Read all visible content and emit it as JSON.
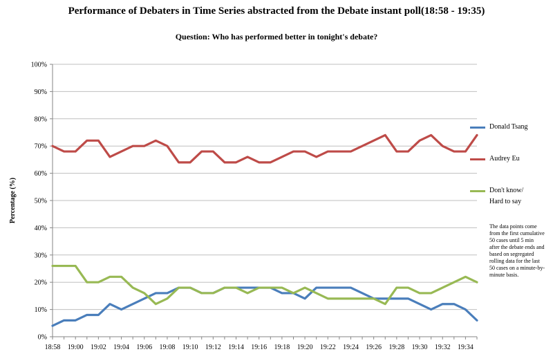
{
  "chart_data": {
    "type": "line",
    "title": "Performance of Debaters in Time Series abstracted from the Debate instant poll(18:58 - 19:35)",
    "subtitle": "Question: Who has performed better in tonight's debate?",
    "ylabel": "Percentage (%)",
    "xlabel": "",
    "ylim": [
      0,
      100
    ],
    "y_ticks": [
      "0%",
      "10%",
      "20%",
      "30%",
      "40%",
      "50%",
      "60%",
      "70%",
      "80%",
      "90%",
      "100%"
    ],
    "grid": "horizontal",
    "legend_position": "right",
    "x": [
      "18:58",
      "18:59",
      "19:00",
      "19:01",
      "19:02",
      "19:03",
      "19:04",
      "19:05",
      "19:06",
      "19:07",
      "19:08",
      "19:09",
      "19:10",
      "19:11",
      "19:12",
      "19:13",
      "19:14",
      "19:15",
      "19:16",
      "19:17",
      "19:18",
      "19:19",
      "19:20",
      "19:21",
      "19:22",
      "19:23",
      "19:24",
      "19:25",
      "19:26",
      "19:27",
      "19:28",
      "19:29",
      "19:30",
      "19:31",
      "19:32",
      "19:33",
      "19:34",
      "19:35"
    ],
    "x_tick_labels": [
      "18:58",
      "19:00",
      "19:02",
      "19:04",
      "19:06",
      "19:08",
      "19:10",
      "19:12",
      "19:14",
      "19:16",
      "19:18",
      "19:20",
      "19:22",
      "19:24",
      "19:26",
      "19:28",
      "19:30",
      "19:32",
      "19:34"
    ],
    "series": [
      {
        "name": "Donald Tsang",
        "color": "#4a7ebb",
        "values": [
          4,
          6,
          6,
          8,
          8,
          12,
          10,
          12,
          14,
          16,
          16,
          18,
          18,
          16,
          16,
          18,
          18,
          18,
          18,
          18,
          16,
          16,
          14,
          18,
          18,
          18,
          18,
          16,
          14,
          14,
          14,
          14,
          12,
          10,
          12,
          12,
          10,
          6
        ]
      },
      {
        "name": "Audrey Eu",
        "color": "#be4b48",
        "values": [
          70,
          68,
          68,
          72,
          72,
          66,
          68,
          70,
          70,
          72,
          70,
          64,
          64,
          68,
          68,
          64,
          64,
          66,
          64,
          64,
          66,
          68,
          68,
          66,
          68,
          68,
          68,
          70,
          72,
          74,
          68,
          68,
          72,
          74,
          70,
          68,
          68,
          74
        ]
      },
      {
        "name": "Don't know/ Hard to say",
        "color": "#98b954",
        "values": [
          26,
          26,
          26,
          20,
          20,
          22,
          22,
          18,
          16,
          12,
          14,
          18,
          18,
          16,
          16,
          18,
          18,
          16,
          18,
          18,
          18,
          16,
          18,
          16,
          14,
          14,
          14,
          14,
          14,
          12,
          18,
          18,
          16,
          16,
          18,
          20,
          22,
          20
        ]
      }
    ]
  },
  "legend": {
    "donald": "Donald Tsang",
    "audrey": "Audrey Eu",
    "dontknow_line1": "Don't know/",
    "dontknow_line2": "Hard to say"
  },
  "note": "The data points come from  the first cumulative 50 cases until 5 min after the debate ends and based on segregated rolling data for the last 50 cases on a minute-by-minute basis."
}
